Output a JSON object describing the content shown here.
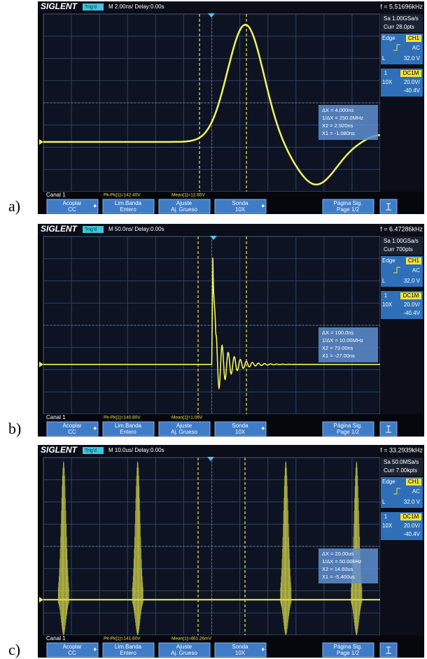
{
  "panels": [
    {
      "label": "a)",
      "brand": "SIGLENT",
      "trig": "Trig'd",
      "timebase": "M 2.00ns/  Delay:0.00s",
      "freq": "f = 5.51696kHz",
      "sample_rate": "Sa 1.00GSa/s",
      "curr": "Curr 28.0pts",
      "trigger_type": "Edge",
      "trigger_source": "CH1",
      "coupling": "AC",
      "level_label": "L",
      "level": "32.0 V",
      "channel": "1",
      "channel_coupling": "DC1M",
      "probe": "10X",
      "volts_div": "20.0V/",
      "offset": "-40.4V",
      "cursor": [
        "ΔX = 4.000ns",
        "1/ΔX = 250.0MHz",
        "X2 = 2.920ns",
        "X1 = -1.080ns"
      ],
      "channel_name": "Canal 1",
      "pkpk": "Pk-Pk[1]=142.40V",
      "mean": "Mean[1]=12.65V",
      "softkeys": [
        {
          "top": "Acoplar",
          "bottom": "CC"
        },
        {
          "top": "Lim.Banda",
          "bottom": "Entero"
        },
        {
          "top": "Ajuste",
          "bottom": "Aj. Grueso"
        },
        {
          "top": "Sonda",
          "bottom": "10X"
        },
        {
          "top": "Página Sig.",
          "bottom": "Page 1/2"
        }
      ]
    },
    {
      "label": "b)",
      "brand": "SIGLENT",
      "trig": "Trig'd",
      "timebase": "M 50.0ns/  Delay:0.00s",
      "freq": "f = 6.47286kHz",
      "sample_rate": "Sa 1.00GSa/s",
      "curr": "Curr 700pts",
      "trigger_type": "Edge",
      "trigger_source": "CH1",
      "coupling": "AC",
      "level_label": "L",
      "level": "32.0 V",
      "channel": "1",
      "channel_coupling": "DC1M",
      "probe": "10X",
      "volts_div": "20.0V/",
      "offset": "-40.4V",
      "cursor": [
        "ΔX = 100.0ns",
        "1/ΔX = 10.00MHz",
        "X2 = 73.00ns",
        "X1 = -27.00ns"
      ],
      "channel_name": "Canal 1",
      "pkpk": "Pk-Pk[1]=140.80V",
      "mean": "Mean[1]=1.06V",
      "softkeys": [
        {
          "top": "Acoplar",
          "bottom": "CC"
        },
        {
          "top": "Lim.Banda",
          "bottom": "Entero"
        },
        {
          "top": "Ajuste",
          "bottom": "Aj. Grueso"
        },
        {
          "top": "Sonda",
          "bottom": "10X"
        },
        {
          "top": "Página Sig.",
          "bottom": "Page 1/2"
        }
      ]
    },
    {
      "label": "c)",
      "brand": "SIGLENT",
      "trig": "Trig'd",
      "timebase": "M 10.0us/  Delay:0.00s",
      "freq": "f = 33.2939kHz",
      "sample_rate": "Sa 50.0MSa/s",
      "curr": "Curr 7.00kpts",
      "trigger_type": "Edge",
      "trigger_source": "CH1",
      "coupling": "AC",
      "level_label": "L",
      "level": "32.0 V",
      "channel": "1",
      "channel_coupling": "DC1M",
      "probe": "10X",
      "volts_div": "20.0V/",
      "offset": "-40.4V",
      "cursor": [
        "ΔX = 20.00us",
        "1/ΔX = 50.00kHz",
        "X2 = 14.60us",
        "X1 = -5.400us"
      ],
      "channel_name": "Canal 1",
      "pkpk": "Pk-Pk[1]=141.60V",
      "mean": "Mean[1]=461.26mV",
      "softkeys": [
        {
          "top": "Acoplar",
          "bottom": "CC"
        },
        {
          "top": "Lim.Banda",
          "bottom": "Entero"
        },
        {
          "top": "Ajuste",
          "bottom": "Aj. Grueso"
        },
        {
          "top": "Sonda",
          "bottom": "10X"
        },
        {
          "top": "Página Sig.",
          "bottom": "Page 1/2"
        }
      ]
    }
  ]
}
